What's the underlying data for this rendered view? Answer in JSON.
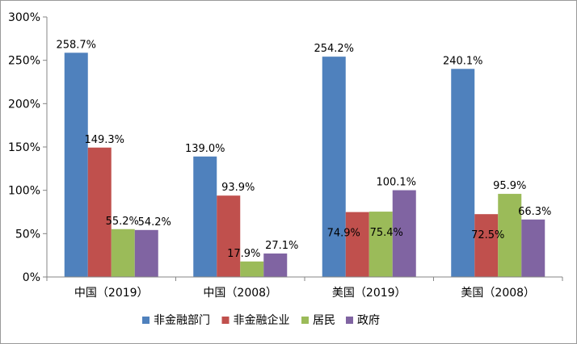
{
  "chart_data": {
    "type": "bar",
    "categories": [
      "中国（2019）",
      "中国（2008）",
      "美国（2019）",
      "美国（2008）"
    ],
    "series": [
      {
        "name": "非金融部门",
        "values": [
          258.7,
          139.0,
          254.2,
          240.1
        ],
        "labels": [
          "258.7%",
          "139.0%",
          "254.2%",
          "240.1%"
        ],
        "color": "#4f81bd"
      },
      {
        "name": "非金融企业",
        "values": [
          149.3,
          93.9,
          74.9,
          72.5
        ],
        "labels": [
          "149.3%",
          "93.9%",
          "74.9%",
          "72.5%"
        ],
        "color": "#c0504d"
      },
      {
        "name": "居民",
        "values": [
          55.2,
          17.9,
          75.4,
          95.9
        ],
        "labels": [
          "55.2%",
          "17.9%",
          "75.4%",
          "95.9%"
        ],
        "color": "#9bbb59"
      },
      {
        "name": "政府",
        "values": [
          54.2,
          27.1,
          100.1,
          66.3
        ],
        "labels": [
          "54.2%",
          "27.1%",
          "100.1%",
          "66.3%"
        ],
        "color": "#8064a2"
      }
    ],
    "y_ticks": [
      "0%",
      "50%",
      "100%",
      "150%",
      "200%",
      "250%",
      "300%"
    ],
    "ylim": [
      0,
      300
    ],
    "grid": false,
    "legend_position": "bottom",
    "title": "",
    "xlabel": "",
    "ylabel": ""
  }
}
